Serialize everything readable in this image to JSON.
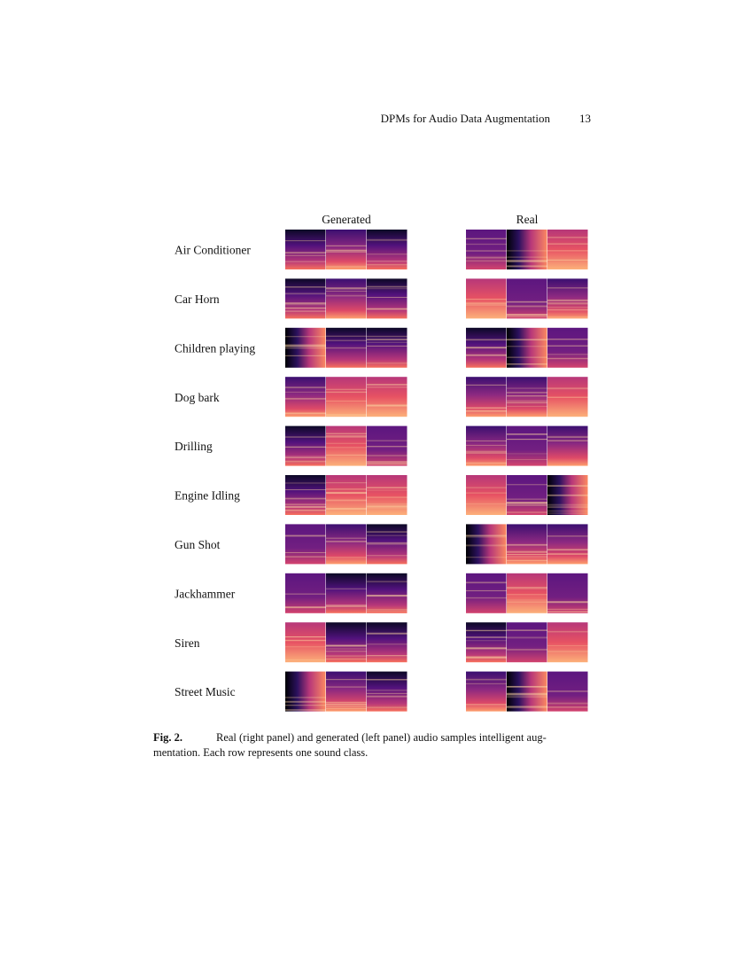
{
  "header": {
    "running_title": "DPMs for Audio Data Augmentation",
    "page_number": "13"
  },
  "figure": {
    "column_titles": [
      "Generated",
      "Real"
    ],
    "rows": [
      "Air Conditioner",
      "Car Horn",
      "Children playing",
      "Dog bark",
      "Drilling",
      "Engine Idling",
      "Gun Shot",
      "Jackhammer",
      "Siren",
      "Street Music"
    ],
    "caption": {
      "label": "Fig. 2.",
      "lines": [
        "Real (right panel) and generated (left panel) audio samples intelligent aug-",
        "mentation. Each row represents one sound class."
      ]
    }
  }
}
